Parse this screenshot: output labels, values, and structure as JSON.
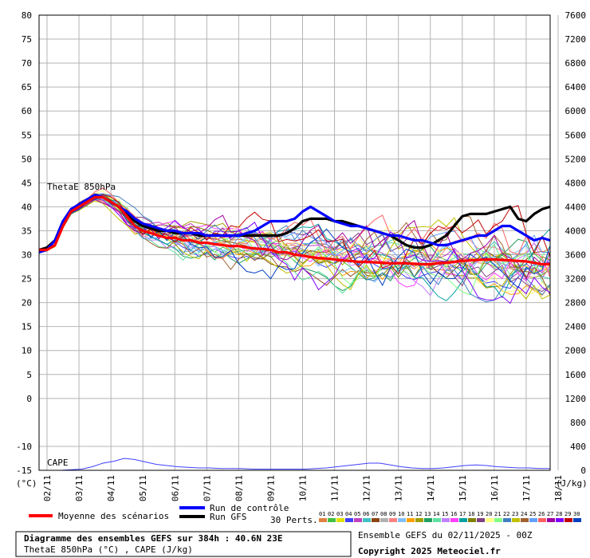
{
  "chart_data": {
    "type": "line",
    "left_axis": {
      "label": "(°C)",
      "ylim": [
        -15,
        80
      ],
      "ticks": [
        80,
        75,
        70,
        65,
        60,
        55,
        50,
        45,
        40,
        35,
        30,
        25,
        20,
        15,
        10,
        5,
        0,
        -10,
        -15
      ]
    },
    "right_axis": {
      "label": "(J/kg)",
      "ylim": [
        0,
        7600
      ],
      "ticks": [
        7600,
        7200,
        6800,
        6400,
        6000,
        5600,
        5200,
        4800,
        4400,
        4000,
        3600,
        3200,
        2800,
        2400,
        2000,
        1600,
        1200,
        800,
        400,
        0
      ]
    },
    "x_ticks": [
      "02/11",
      "03/11",
      "04/11",
      "05/11",
      "06/11",
      "07/11",
      "08/11",
      "09/11",
      "10/11",
      "11/11",
      "12/11",
      "13/11",
      "14/11",
      "15/11",
      "16/11",
      "17/11",
      "18/11"
    ],
    "grid": true,
    "annotations": {
      "thetae": "ThetaE 850hPa",
      "cape": "CAPE"
    },
    "series": [
      {
        "name": "Moyenne des scénarios",
        "color": "#ff0000",
        "x": [
          0,
          0.25,
          0.5,
          0.75,
          1,
          1.25,
          1.5,
          1.75,
          2,
          2.25,
          2.5,
          2.75,
          3,
          3.25,
          3.5,
          3.75,
          4,
          4.25,
          4.5,
          4.75,
          5,
          5.25,
          5.5,
          5.75,
          6,
          6.25,
          6.5,
          6.75,
          7,
          7.25,
          7.5,
          7.75,
          8,
          8.25,
          8.5,
          8.75,
          9,
          9.25,
          9.5,
          9.75,
          10,
          10.25,
          10.5,
          10.75,
          11,
          11.25,
          11.5,
          11.75,
          12,
          12.25,
          12.5,
          12.75,
          13,
          13.25,
          13.5,
          13.75,
          14,
          14.25,
          14.5,
          14.75,
          15,
          15.25,
          15.5,
          15.75,
          16
        ],
        "values": [
          31,
          31,
          32,
          36,
          39,
          40,
          41,
          42,
          42,
          41,
          40,
          38,
          36,
          35,
          34.5,
          34,
          33.5,
          33.5,
          33,
          33,
          32.5,
          32.5,
          32.2,
          32,
          31.8,
          31.8,
          31.5,
          31.3,
          31.2,
          31,
          30.5,
          30.5,
          30,
          29.8,
          29.5,
          29.3,
          29.2,
          29,
          28.8,
          28.7,
          28.5,
          28.5,
          28.4,
          28.3,
          28.2,
          28.2,
          28.2,
          28.1,
          28,
          28,
          28.2,
          28.3,
          28.5,
          28.7,
          28.8,
          28.9,
          29,
          29,
          28.9,
          28.8,
          28.7,
          28.6,
          28.3,
          28,
          28
        ]
      },
      {
        "name": "Run de contrôle",
        "color": "#0000ff",
        "x": [
          0,
          0.25,
          0.5,
          0.75,
          1,
          1.25,
          1.5,
          1.75,
          2,
          2.25,
          2.5,
          2.75,
          3,
          3.25,
          3.5,
          3.75,
          4,
          4.25,
          4.5,
          4.75,
          5,
          5.25,
          5.5,
          5.75,
          6,
          6.25,
          6.5,
          6.75,
          7,
          7.25,
          7.5,
          7.75,
          8,
          8.25,
          8.5,
          8.75,
          9,
          9.25,
          9.5,
          9.75,
          10,
          10.25,
          10.5,
          10.75,
          11,
          11.25,
          11.5,
          11.75,
          12,
          12.25,
          12.5,
          12.75,
          13,
          13.25,
          13.5,
          13.75,
          14,
          14.25,
          14.5,
          14.75,
          15,
          15.25,
          15.5,
          15.75,
          16
        ],
        "values": [
          30.5,
          31,
          33,
          37,
          39.5,
          40.5,
          41.5,
          42.5,
          42,
          41,
          40,
          39,
          37.5,
          36.5,
          36,
          35.5,
          35,
          35,
          34.5,
          34.5,
          34.5,
          34,
          34,
          34,
          34,
          34,
          34.5,
          35,
          36,
          37,
          37,
          37,
          37.5,
          39,
          40,
          39,
          38,
          37,
          36.5,
          36,
          36,
          35.5,
          35,
          34.5,
          34,
          34,
          33.5,
          33,
          33,
          32.5,
          32,
          32,
          32.5,
          33,
          33.5,
          34,
          34,
          35,
          36,
          36,
          35,
          34,
          33,
          33.5,
          33
        ]
      },
      {
        "name": "Run GFS",
        "color": "#000000",
        "x": [
          0,
          0.25,
          0.5,
          0.75,
          1,
          1.25,
          1.5,
          1.75,
          2,
          2.25,
          2.5,
          2.75,
          3,
          3.25,
          3.5,
          3.75,
          4,
          4.25,
          4.5,
          4.75,
          5,
          5.25,
          5.5,
          5.75,
          6,
          6.25,
          6.5,
          6.75,
          7,
          7.25,
          7.5,
          7.75,
          8,
          8.25,
          8.5,
          8.75,
          9,
          9.25,
          9.5,
          9.75,
          10,
          10.25,
          10.5,
          10.75,
          11,
          11.25,
          11.5,
          11.75,
          12,
          12.25,
          12.5,
          12.75,
          13,
          13.25,
          13.5,
          13.75,
          14,
          14.25,
          14.5,
          14.75,
          15,
          15.25,
          15.5,
          15.75,
          16
        ],
        "values": [
          31,
          31.5,
          33,
          37,
          39,
          40,
          41,
          42.5,
          42,
          41,
          40,
          38.5,
          37,
          36,
          35.5,
          35,
          35,
          34.5,
          34.5,
          34.5,
          34,
          34,
          34,
          34,
          34,
          34,
          34,
          34,
          34,
          34,
          34,
          34.5,
          35.5,
          37,
          37.5,
          37.5,
          37.5,
          37,
          37,
          36.5,
          36,
          35.5,
          35,
          34.5,
          34,
          33,
          32,
          31.5,
          31.5,
          32,
          33,
          34,
          36,
          38,
          38.5,
          38.5,
          38.5,
          39,
          39.5,
          40,
          37.5,
          37,
          38.5,
          39.5,
          40
        ]
      }
    ],
    "cape": [
      0,
      0,
      0,
      10,
      20,
      60,
      120,
      150,
      200,
      180,
      140,
      100,
      80,
      60,
      50,
      40,
      40,
      30,
      30,
      30,
      20,
      20,
      20,
      20,
      20,
      20,
      30,
      40,
      60,
      80,
      100,
      120,
      120,
      90,
      60,
      40,
      30,
      30,
      40,
      60,
      80,
      90,
      80,
      60,
      50,
      40,
      40,
      30,
      30
    ]
  },
  "legend": {
    "mean_label": "Moyenne des scénarios",
    "control_label": "Run de contrôle",
    "gfs_label": "Run GFS",
    "perts_label": "30 Perts.",
    "pert_numbers": [
      "01",
      "02",
      "03",
      "04",
      "05",
      "06",
      "07",
      "08",
      "09",
      "10",
      "11",
      "12",
      "13",
      "14",
      "15",
      "16",
      "17",
      "18",
      "19",
      "20",
      "21",
      "22",
      "23",
      "24",
      "25",
      "26",
      "27",
      "28",
      "29",
      "30"
    ],
    "pert_colors": [
      "#e08040",
      "#40c040",
      "#e0e000",
      "#4040ff",
      "#c040c0",
      "#40c0c0",
      "#8b4513",
      "#b0b0b0",
      "#ff8080",
      "#80c0ff",
      "#ffa000",
      "#a0a000",
      "#20a060",
      "#60e0a0",
      "#c080ff",
      "#ff40ff",
      "#00a0a0",
      "#808000",
      "#804080",
      "#ffff80",
      "#80ff80",
      "#4080c0",
      "#c0c000",
      "#a06030",
      "#60a0ff",
      "#ff6060",
      "#a000a0",
      "#8000ff",
      "#c00000",
      "#0040c0"
    ]
  },
  "footer": {
    "title": "Diagramme des ensembles GEFS sur 384h : 40.6N 23E",
    "subtitle": "ThetaE 850hPa (°C) , CAPE (J/kg)",
    "run_label": "Ensemble GEFS du 02/11/2025 - 00Z",
    "copyright": "Copyright 2025 Meteociel.fr"
  }
}
